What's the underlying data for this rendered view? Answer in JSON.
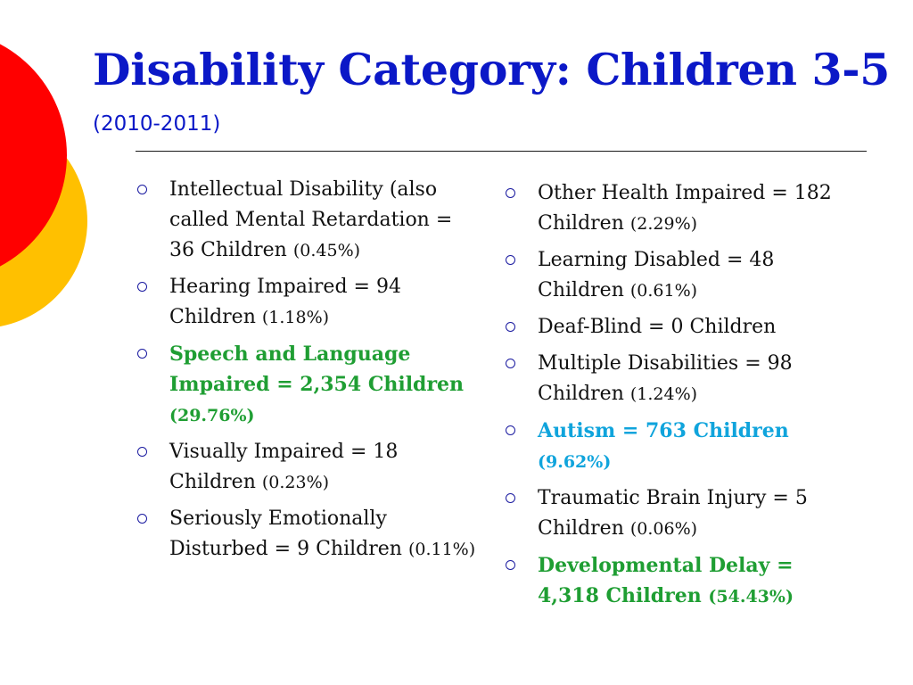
{
  "slide": {
    "title": "Disability Category: Children 3-5",
    "subtitle": "(2010-2011)"
  },
  "colors": {
    "title": "#0b18c7",
    "body_text": "#111111",
    "highlight_green": "#1f9e33",
    "highlight_blue": "#10a4dc",
    "deco_red": "#ff0000",
    "deco_yellow": "#ffc000",
    "bullet": "#1a1aa0"
  },
  "left_column": [
    {
      "text": "Intellectual Disability (also called Mental Retardation = 36 Children",
      "pct": "(0.45%)",
      "style": "normal"
    },
    {
      "text": "Hearing Impaired = 94 Children",
      "pct": "(1.18%)",
      "style": "normal"
    },
    {
      "text": "Speech and Language Impaired = 2,354 Children",
      "pct": "(29.76%)",
      "style": "green"
    },
    {
      "text": "Visually Impaired = 18 Children",
      "pct": "(0.23%)",
      "style": "normal"
    },
    {
      "text": "Seriously Emotionally Disturbed = 9 Children",
      "pct": "(0.11%)",
      "style": "normal"
    }
  ],
  "right_column": [
    {
      "text": "Other Health Impaired = 182 Children",
      "pct": "(2.29%)",
      "style": "normal"
    },
    {
      "text": "Learning Disabled = 48 Children",
      "pct": "(0.61%)",
      "style": "normal"
    },
    {
      "text": "Deaf-Blind = 0 Children",
      "pct": "",
      "style": "normal"
    },
    {
      "text": "Multiple Disabilities = 98 Children",
      "pct": "(1.24%)",
      "style": "normal"
    },
    {
      "text": "Autism = 763 Children",
      "pct": "(9.62%)",
      "style": "blue"
    },
    {
      "text": "Traumatic Brain Injury = 5 Children",
      "pct": "(0.06%)",
      "style": "normal"
    },
    {
      "text": "Developmental Delay = 4,318 Children",
      "pct": "(54.43%)",
      "style": "green"
    }
  ]
}
